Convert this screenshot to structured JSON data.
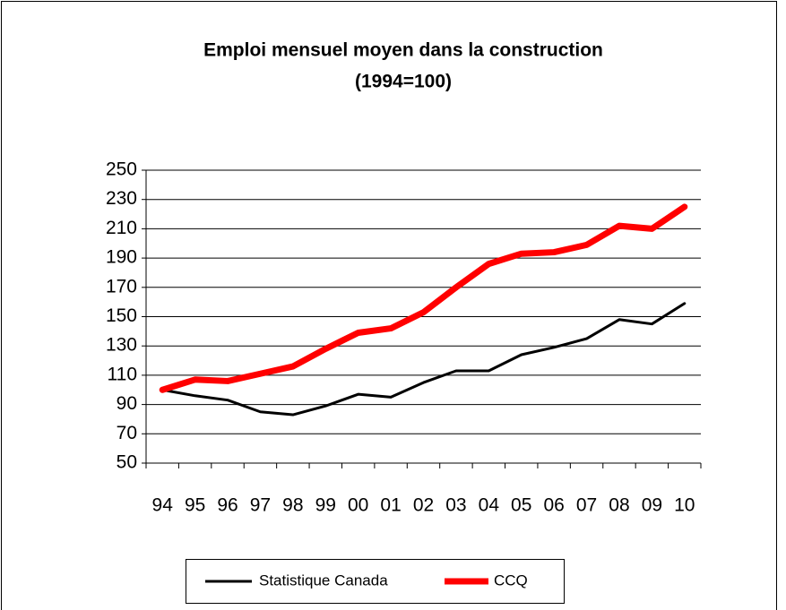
{
  "chart_data": {
    "type": "line",
    "title": "Emploi mensuel moyen dans la construction",
    "subtitle": "(1994=100)",
    "categories": [
      "94",
      "95",
      "96",
      "97",
      "98",
      "99",
      "00",
      "01",
      "02",
      "03",
      "04",
      "05",
      "06",
      "07",
      "08",
      "09",
      "10"
    ],
    "series": [
      {
        "name": "Statistique Canada",
        "color": "#000000",
        "values": [
          100,
          96,
          93,
          85,
          83,
          89,
          97,
          95,
          105,
          113,
          113,
          124,
          129,
          135,
          148,
          145,
          159
        ]
      },
      {
        "name": "CCQ",
        "color": "#ff0000",
        "values": [
          100,
          107,
          106,
          111,
          116,
          128,
          139,
          142,
          153,
          170,
          186,
          193,
          194,
          199,
          212,
          210,
          225
        ]
      }
    ],
    "ylim": [
      50,
      250
    ],
    "yticks": [
      50,
      70,
      90,
      110,
      130,
      150,
      170,
      190,
      210,
      230,
      250
    ],
    "grid": true,
    "legend": "bottom"
  }
}
